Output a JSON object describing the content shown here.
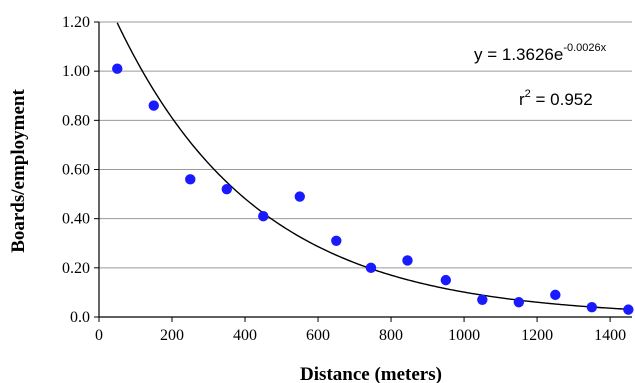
{
  "chart_data": {
    "type": "scatter",
    "title": "",
    "xlabel": "Distance (meters)",
    "ylabel": "Boards/employment",
    "xlim": [
      0,
      1460
    ],
    "ylim": [
      0,
      1.2
    ],
    "x_ticks": [
      "0",
      "200",
      "400",
      "600",
      "800",
      "1000",
      "1200",
      "1400"
    ],
    "x_tick_values": [
      0,
      200,
      400,
      600,
      800,
      1000,
      1200,
      1400
    ],
    "y_ticks": [
      "0.0",
      "0.20",
      "0.40",
      "0.60",
      "0.80",
      "1.00",
      "1.20"
    ],
    "y_tick_values": [
      0,
      0.2,
      0.4,
      0.6,
      0.8,
      1.0,
      1.2
    ],
    "grid": "horizontal",
    "point_color": "#1a1aff",
    "series": [
      {
        "x": [
          50,
          150,
          250,
          350,
          450,
          550,
          650,
          745,
          845,
          950,
          1050,
          1150,
          1250,
          1350,
          1450
        ],
        "y": [
          1.01,
          0.86,
          0.56,
          0.52,
          0.41,
          0.49,
          0.31,
          0.2,
          0.23,
          0.15,
          0.07,
          0.06,
          0.09,
          0.04,
          0.03
        ]
      }
    ],
    "fit": {
      "type": "exponential",
      "a": 1.3626,
      "b": -0.0026,
      "x_range": [
        50,
        1450
      ]
    },
    "annotations": {
      "equation_base": "y = 1.3626e",
      "equation_exp": "-0.0026x",
      "r2_base": "r",
      "r2_exp": "2",
      "r2_value": " = 0.952"
    }
  }
}
